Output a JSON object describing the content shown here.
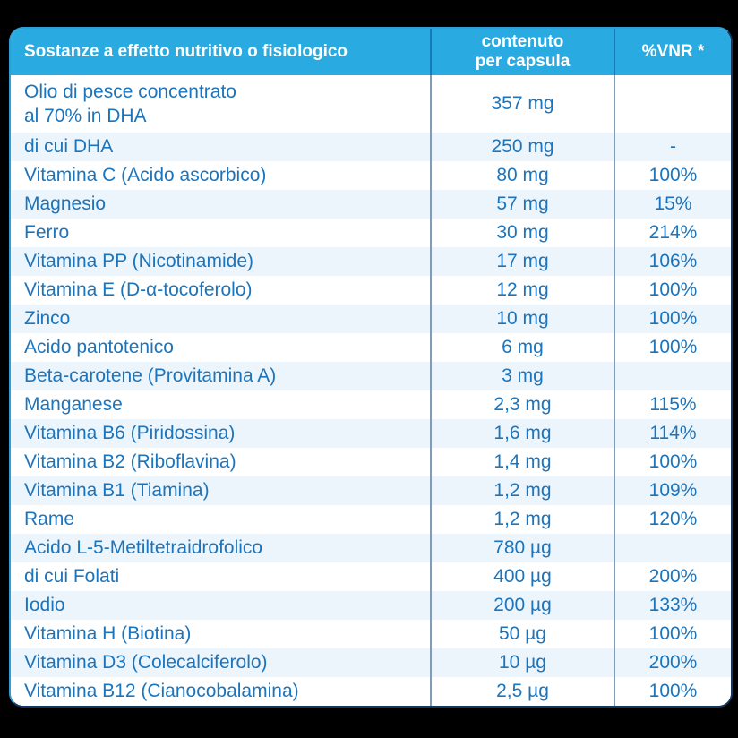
{
  "colors": {
    "page_bg": "#000000",
    "header_bg": "#29ABE2",
    "header_text": "#FFFFFF",
    "body_text": "#1C75BC",
    "row_alt_bg": "#EDF5FC",
    "row_bg": "#FFFFFF",
    "separator_header": "#1779B8",
    "separator_body": "#7F9DB8",
    "border_light": "#2F9ED8",
    "border_dark": "#16365F"
  },
  "table": {
    "header": {
      "substance": "Sostanze a effetto nutritivo o fisiologico",
      "content_line1": "contenuto",
      "content_line2": "per capsula",
      "vnr": "%VNR *"
    },
    "rows": [
      {
        "substance": "Olio di pesce concentrato",
        "substance_line2": "al 70% in DHA",
        "amount": "357 mg",
        "vnr": "",
        "tall": true
      },
      {
        "substance": "di cui DHA",
        "amount": "250 mg",
        "vnr": "-"
      },
      {
        "substance": "Vitamina C (Acido ascorbico)",
        "amount": "80 mg",
        "vnr": "100%"
      },
      {
        "substance": "Magnesio",
        "amount": "57 mg",
        "vnr": "15%"
      },
      {
        "substance": "Ferro",
        "amount": "30 mg",
        "vnr": "214%"
      },
      {
        "substance": "Vitamina PP (Nicotinamide)",
        "amount": "17 mg",
        "vnr": "106%"
      },
      {
        "substance": "Vitamina E (D-α-tocoferolo)",
        "amount": "12 mg",
        "vnr": "100%"
      },
      {
        "substance": "Zinco",
        "amount": "10 mg",
        "vnr": "100%"
      },
      {
        "substance": "Acido pantotenico",
        "amount": "6 mg",
        "vnr": "100%"
      },
      {
        "substance": "Beta-carotene (Provitamina A)",
        "amount": "3 mg",
        "vnr": ""
      },
      {
        "substance": "Manganese",
        "amount": "2,3 mg",
        "vnr": "115%"
      },
      {
        "substance": "Vitamina B6 (Piridossina)",
        "amount": "1,6 mg",
        "vnr": "114%"
      },
      {
        "substance": "Vitamina B2 (Riboflavina)",
        "amount": "1,4 mg",
        "vnr": "100%"
      },
      {
        "substance": "Vitamina B1 (Tiamina)",
        "amount": "1,2 mg",
        "vnr": "109%"
      },
      {
        "substance": "Rame",
        "amount": "1,2 mg",
        "vnr": "120%"
      },
      {
        "substance": "Acido L-5-Metiltetraidrofolico",
        "amount": "780 µg",
        "vnr": ""
      },
      {
        "substance": "di cui Folati",
        "amount": "400 µg",
        "vnr": "200%"
      },
      {
        "substance": "Iodio",
        "amount": "200 µg",
        "vnr": "133%"
      },
      {
        "substance": "Vitamina H (Biotina)",
        "amount": "50 µg",
        "vnr": "100%"
      },
      {
        "substance": "Vitamina D3 (Colecalciferolo)",
        "amount": "10 µg",
        "vnr": "200%"
      },
      {
        "substance": "Vitamina B12 (Cianocobalamina)",
        "amount": "2,5 µg",
        "vnr": "100%"
      }
    ]
  },
  "chart_data": {
    "type": "table",
    "title": "Sostanze a effetto nutritivo o fisiologico",
    "columns": [
      "Sostanze a effetto nutritivo o fisiologico",
      "contenuto per capsula",
      "%VNR *"
    ],
    "rows": [
      [
        "Olio di pesce concentrato al 70% in DHA",
        "357 mg",
        ""
      ],
      [
        "di cui DHA",
        "250 mg",
        "-"
      ],
      [
        "Vitamina C (Acido ascorbico)",
        "80 mg",
        "100%"
      ],
      [
        "Magnesio",
        "57 mg",
        "15%"
      ],
      [
        "Ferro",
        "30 mg",
        "214%"
      ],
      [
        "Vitamina PP (Nicotinamide)",
        "17 mg",
        "106%"
      ],
      [
        "Vitamina E (D-α-tocoferolo)",
        "12 mg",
        "100%"
      ],
      [
        "Zinco",
        "10 mg",
        "100%"
      ],
      [
        "Acido pantotenico",
        "6 mg",
        "100%"
      ],
      [
        "Beta-carotene (Provitamina A)",
        "3 mg",
        ""
      ],
      [
        "Manganese",
        "2,3 mg",
        "115%"
      ],
      [
        "Vitamina B6 (Piridossina)",
        "1,6 mg",
        "114%"
      ],
      [
        "Vitamina B2 (Riboflavina)",
        "1,4 mg",
        "100%"
      ],
      [
        "Vitamina B1 (Tiamina)",
        "1,2 mg",
        "109%"
      ],
      [
        "Rame",
        "1,2 mg",
        "120%"
      ],
      [
        "Acido L-5-Metiltetraidrofolico",
        "780 µg",
        ""
      ],
      [
        "di cui Folati",
        "400 µg",
        "200%"
      ],
      [
        "Iodio",
        "200 µg",
        "133%"
      ],
      [
        "Vitamina H (Biotina)",
        "50 µg",
        "100%"
      ],
      [
        "Vitamina D3 (Colecalciferolo)",
        "10 µg",
        "200%"
      ],
      [
        "Vitamina B12 (Cianocobalamina)",
        "2,5 µg",
        "100%"
      ]
    ]
  }
}
